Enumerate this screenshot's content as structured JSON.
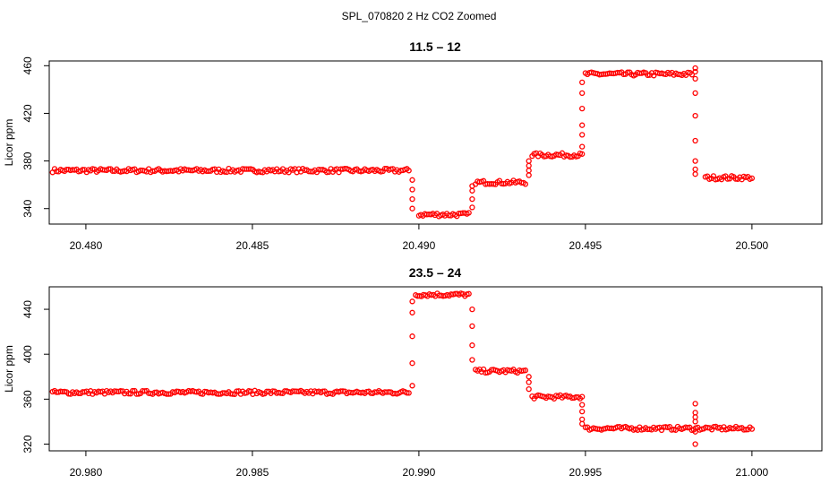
{
  "figure": {
    "title": "SPL_070820  2 Hz CO2 Zoomed"
  },
  "chart_data": [
    {
      "type": "scatter",
      "title": "11.5 – 12",
      "xlabel": "",
      "ylabel": "Licor ppm",
      "xlim": [
        20.4789,
        20.5021
      ],
      "ylim": [
        327,
        464
      ],
      "xticks": [
        "20.480",
        "20.485",
        "20.490",
        "20.495",
        "20.500"
      ],
      "xtick_values": [
        20.48,
        20.485,
        20.49,
        20.495,
        20.5
      ],
      "yticks": [
        "340",
        "380",
        "420",
        "460"
      ],
      "ytick_values": [
        340,
        380,
        420,
        460
      ],
      "marker_color": "#ff0000",
      "grid": false,
      "segments": [
        {
          "x_start": 20.479,
          "x_end": 20.4897,
          "y": 372
        },
        {
          "x_start": 20.49,
          "x_end": 20.4915,
          "y": 335
        },
        {
          "x_start": 20.4917,
          "x_end": 20.4932,
          "y": 362
        },
        {
          "x_start": 20.4934,
          "x_end": 20.4949,
          "y": 385
        },
        {
          "x_start": 20.495,
          "x_end": 20.4982,
          "y": 453
        },
        {
          "x_start": 20.4986,
          "x_end": 20.5,
          "y": 366
        }
      ],
      "transitions": [
        {
          "x": 20.4898,
          "y": [
            364,
            356,
            348,
            340
          ]
        },
        {
          "x": 20.4916,
          "y": [
            341,
            348,
            355,
            359
          ]
        },
        {
          "x": 20.4933,
          "y": [
            368,
            372,
            376,
            380
          ]
        },
        {
          "x": 20.4949,
          "y": [
            392,
            402,
            410,
            424,
            437,
            446
          ]
        },
        {
          "x": 20.4983,
          "y": [
            458,
            455,
            449,
            437,
            418,
            397,
            380,
            373,
            369
          ]
        }
      ]
    },
    {
      "type": "scatter",
      "title": "23.5 – 24",
      "xlabel": "",
      "ylabel": "Licor ppm",
      "xlim": [
        20.9789,
        21.0021
      ],
      "ylim": [
        314,
        460
      ],
      "xticks": [
        "20.980",
        "20.985",
        "20.990",
        "20.995",
        "21.000"
      ],
      "xtick_values": [
        20.98,
        20.985,
        20.99,
        20.995,
        21.0
      ],
      "yticks": [
        "320",
        "360",
        "400",
        "440"
      ],
      "ytick_values": [
        320,
        360,
        400,
        440
      ],
      "marker_color": "#ff0000",
      "grid": false,
      "segments": [
        {
          "x_start": 20.979,
          "x_end": 20.9897,
          "y": 366
        },
        {
          "x_start": 20.9899,
          "x_end": 20.9915,
          "y": 453
        },
        {
          "x_start": 20.9917,
          "x_end": 20.9932,
          "y": 385
        },
        {
          "x_start": 20.9934,
          "x_end": 20.9949,
          "y": 362
        },
        {
          "x_start": 20.995,
          "x_end": 21.0,
          "y": 334
        }
      ],
      "transitions": [
        {
          "x": 20.9898,
          "y": [
            372,
            392,
            416,
            437,
            447
          ]
        },
        {
          "x": 20.9916,
          "y": [
            440,
            425,
            408,
            395
          ]
        },
        {
          "x": 20.9933,
          "y": [
            380,
            375,
            369
          ]
        },
        {
          "x": 20.9949,
          "y": [
            355,
            349,
            342,
            338
          ]
        },
        {
          "x": 20.9983,
          "y": [
            356,
            348,
            344,
            340,
            331,
            320
          ]
        }
      ]
    }
  ]
}
